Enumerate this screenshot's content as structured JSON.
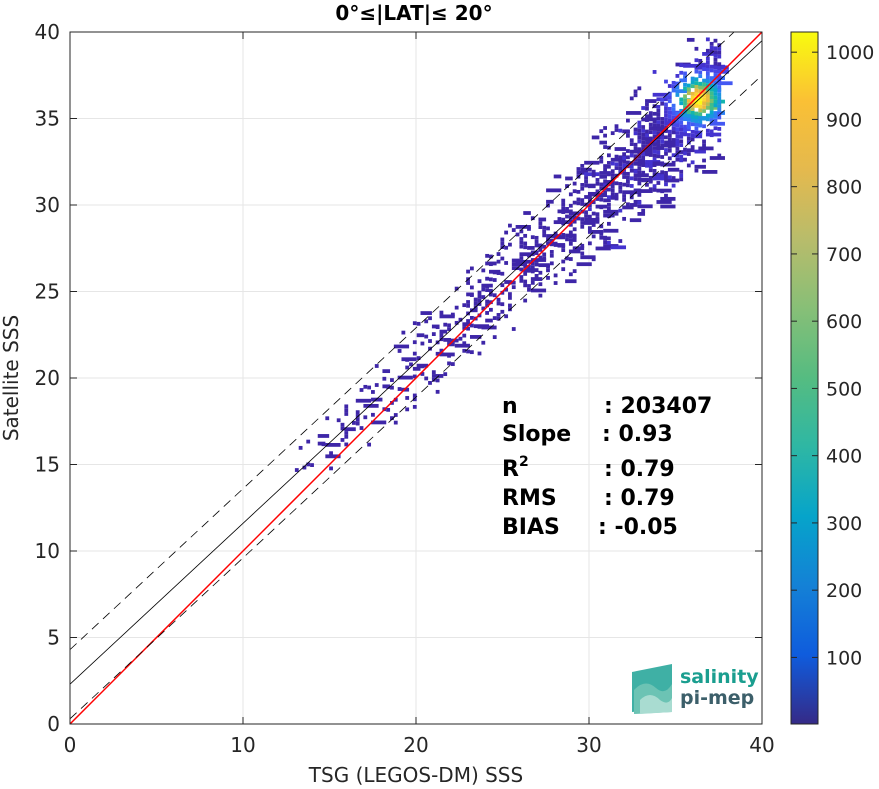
{
  "chart_data": {
    "type": "heatmap",
    "title": "0°≤|LAT|≤ 20°",
    "xlabel": "TSG (LEGOS-DM) SSS",
    "ylabel": "Satellite SSS",
    "xlim": [
      0,
      40
    ],
    "ylim": [
      0,
      40
    ],
    "xticks": [
      "0",
      "10",
      "20",
      "30",
      "40"
    ],
    "yticks": [
      "0",
      "5",
      "10",
      "15",
      "20",
      "25",
      "30",
      "35",
      "40"
    ],
    "grid": true,
    "colorbar": {
      "colormap": "parula",
      "range": [
        1,
        1030
      ],
      "ticks": [
        "100",
        "200",
        "300",
        "400",
        "500",
        "600",
        "700",
        "800",
        "900",
        "1000"
      ]
    },
    "lines": [
      {
        "name": "1:1",
        "color": "#ff0000",
        "style": "solid",
        "slope": 1.0,
        "intercept": 0.0
      },
      {
        "name": "fit",
        "color": "#000000",
        "style": "solid",
        "slope": 0.93,
        "intercept": 2.3
      },
      {
        "name": "fit+2std",
        "color": "#000000",
        "style": "dashed",
        "slope": 0.93,
        "intercept": 4.3
      },
      {
        "name": "fit-2std",
        "color": "#000000",
        "style": "dashed",
        "slope": 0.93,
        "intercept": 0.3
      }
    ],
    "density_summary": {
      "peak_x": 36.2,
      "peak_y": 36.0,
      "peak_count": 1000,
      "x_extent": [
        13.0,
        37.5
      ],
      "y_extent": [
        14.5,
        39.5
      ]
    },
    "stats": [
      {
        "label": "n",
        "value": ": 203407"
      },
      {
        "label": "Slope",
        "value": ": 0.93"
      },
      {
        "label": "R",
        "sup": "2",
        "value": ": 0.79"
      },
      {
        "label": "RMS",
        "value": ": 0.79"
      },
      {
        "label": "BIAS",
        "value": ": -0.05"
      }
    ]
  },
  "logo": {
    "line1": "salinity",
    "line2": "pi-mep",
    "color1": "#1a9e8f",
    "color2": "#3c5f6a"
  }
}
